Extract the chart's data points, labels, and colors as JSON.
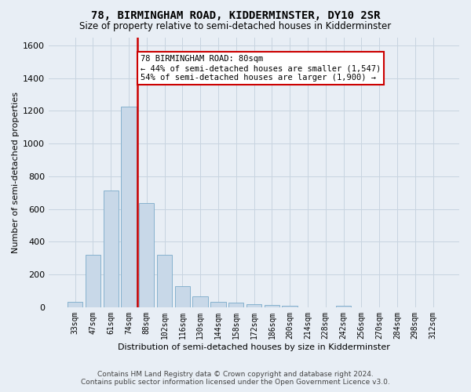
{
  "title": "78, BIRMINGHAM ROAD, KIDDERMINSTER, DY10 2SR",
  "subtitle": "Size of property relative to semi-detached houses in Kidderminster",
  "xlabel": "Distribution of semi-detached houses by size in Kidderminster",
  "ylabel": "Number of semi-detached properties",
  "bar_color": "#c8d8e8",
  "bar_edge_color": "#7aaaca",
  "categories": [
    "33sqm",
    "47sqm",
    "61sqm",
    "74sqm",
    "88sqm",
    "102sqm",
    "116sqm",
    "130sqm",
    "144sqm",
    "158sqm",
    "172sqm",
    "186sqm",
    "200sqm",
    "214sqm",
    "228sqm",
    "242sqm",
    "256sqm",
    "270sqm",
    "284sqm",
    "298sqm",
    "312sqm"
  ],
  "values": [
    32,
    320,
    715,
    1225,
    635,
    320,
    130,
    65,
    35,
    30,
    20,
    15,
    10,
    0,
    0,
    10,
    0,
    0,
    0,
    0,
    0
  ],
  "ylim": [
    0,
    1650
  ],
  "yticks": [
    0,
    200,
    400,
    600,
    800,
    1000,
    1200,
    1400,
    1600
  ],
  "property_bin_index": 4,
  "annotation_title": "78 BIRMINGHAM ROAD: 80sqm",
  "annotation_line1": "← 44% of semi-detached houses are smaller (1,547)",
  "annotation_line2": "54% of semi-detached houses are larger (1,900) →",
  "red_line_color": "#cc0000",
  "grid_color": "#c8d4e0",
  "background_color": "#e8eef5",
  "footer_line1": "Contains HM Land Registry data © Crown copyright and database right 2024.",
  "footer_line2": "Contains public sector information licensed under the Open Government Licence v3.0."
}
